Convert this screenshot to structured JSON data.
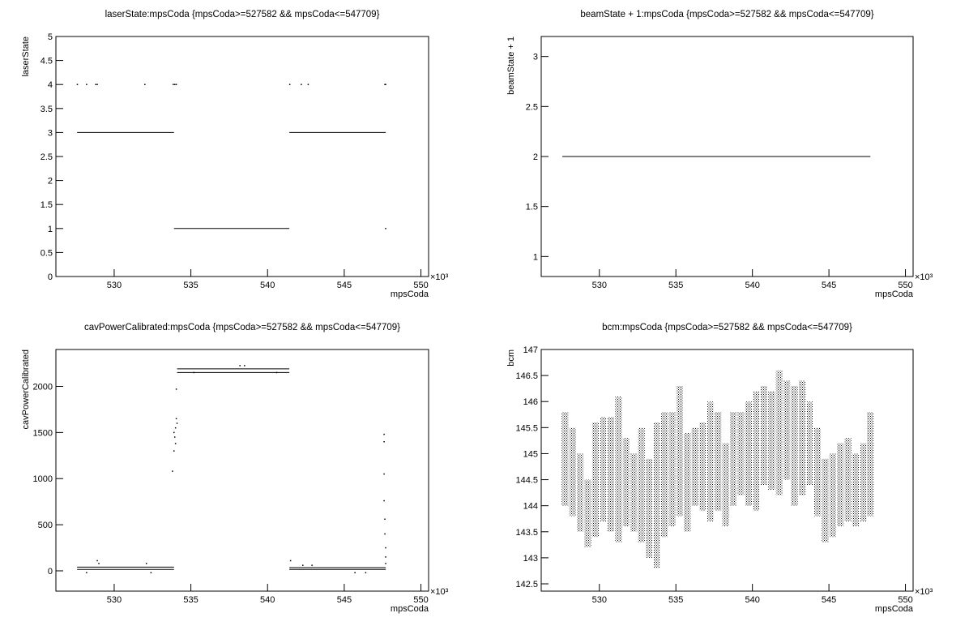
{
  "chart_data": [
    {
      "type": "scatter",
      "title": "laserState:mpsCoda {mpsCoda>=527582 && mpsCoda<=547709}",
      "xlabel": "mpsCoda",
      "ylabel": "laserState",
      "xscale_label": "×10³",
      "xlim": [
        526.2,
        550.5
      ],
      "xticks": [
        530,
        535,
        540,
        545,
        550
      ],
      "ylim": [
        0,
        5
      ],
      "yticks": [
        0,
        0.5,
        1,
        1.5,
        2,
        2.5,
        3,
        3.5,
        4,
        4.5,
        5
      ],
      "segments": {
        "x0": [
          527.58,
          533.9,
          541.42
        ],
        "x1": [
          533.9,
          541.42,
          547.71
        ],
        "y": [
          3,
          1,
          3
        ]
      },
      "points": {
        "x": [
          527.6,
          528.2,
          528.8,
          528.9,
          532.0,
          533.85,
          533.95,
          534.05,
          541.45,
          542.2,
          542.65,
          547.65,
          547.7,
          547.7
        ],
        "y": [
          4,
          4,
          4,
          4,
          4,
          4,
          4,
          4,
          4,
          4,
          4,
          4,
          4,
          1
        ]
      },
      "color": "#000000"
    },
    {
      "type": "scatter",
      "title": "beamState + 1:mpsCoda {mpsCoda>=527582 && mpsCoda<=547709}",
      "xlabel": "mpsCoda",
      "ylabel": "beamState + 1",
      "xscale_label": "×10³",
      "xlim": [
        526.2,
        550.5
      ],
      "xticks": [
        530,
        535,
        540,
        545,
        550
      ],
      "ylim": [
        0.8,
        3.2
      ],
      "yticks": [
        1,
        1.5,
        2,
        2.5,
        3
      ],
      "segments": {
        "x0": [
          527.58
        ],
        "x1": [
          547.71
        ],
        "y": [
          2
        ]
      },
      "color": "#000000"
    },
    {
      "type": "scatter",
      "title": "cavPowerCalibrated:mpsCoda {mpsCoda>=527582 && mpsCoda<=547709}",
      "xlabel": "mpsCoda",
      "ylabel": "cavPowerCalibrated",
      "xscale_label": "×10³",
      "xlim": [
        526.2,
        550.5
      ],
      "xticks": [
        530,
        535,
        540,
        545,
        550
      ],
      "ylim": [
        -220,
        2400
      ],
      "yticks": [
        0,
        500,
        1000,
        1500,
        2000
      ],
      "segments": {
        "x0": [
          527.58,
          527.58,
          534.1,
          534.1,
          541.42,
          541.42
        ],
        "x1": [
          533.9,
          533.9,
          541.42,
          541.42,
          547.71,
          547.71
        ],
        "y": [
          40,
          15,
          2190,
          2150,
          35,
          15
        ]
      },
      "points": {
        "x": [
          533.9,
          533.95,
          534.0,
          534.05,
          533.9,
          534.0,
          534.1,
          533.8,
          534.05,
          528.9,
          529.0,
          532.1,
          535.2,
          538.2,
          538.5,
          540.6,
          541.5,
          542.3,
          542.9,
          547.6,
          547.6,
          547.6,
          547.6,
          547.65,
          547.65,
          547.7,
          547.7,
          547.7,
          528.2,
          532.4,
          545.7,
          546.4
        ],
        "y": [
          1300,
          1450,
          1550,
          1650,
          1500,
          1380,
          1600,
          1080,
          1970,
          110,
          80,
          80,
          2150,
          2225,
          2225,
          2150,
          110,
          60,
          60,
          1480,
          1400,
          1050,
          760,
          560,
          400,
          250,
          150,
          80,
          -20,
          -20,
          -20,
          -20
        ]
      },
      "color": "#000000"
    },
    {
      "type": "range",
      "title": "bcm:mpsCoda {mpsCoda>=527582 && mpsCoda<=547709}",
      "xlabel": "mpsCoda",
      "ylabel": "bcm",
      "xscale_label": "×10³",
      "xlim": [
        526.2,
        550.5
      ],
      "xticks": [
        530,
        535,
        540,
        545,
        550
      ],
      "ylim": [
        142.36,
        147.0
      ],
      "yticks": [
        142.5,
        143,
        143.5,
        144,
        144.5,
        145,
        145.5,
        146,
        146.5,
        147
      ],
      "x": [
        527.75,
        528.25,
        528.75,
        529.25,
        529.75,
        530.25,
        530.75,
        531.25,
        531.75,
        532.25,
        532.75,
        533.25,
        533.75,
        534.25,
        534.75,
        535.25,
        535.75,
        536.25,
        536.75,
        537.25,
        537.75,
        538.25,
        538.75,
        539.25,
        539.75,
        540.25,
        540.75,
        541.25,
        541.75,
        542.25,
        542.75,
        543.25,
        543.75,
        544.25,
        544.75,
        545.25,
        545.75,
        546.25,
        546.75,
        547.25,
        547.7
      ],
      "low": [
        144.0,
        143.8,
        143.5,
        143.2,
        143.4,
        143.7,
        143.5,
        143.3,
        143.6,
        143.5,
        143.3,
        143.0,
        142.8,
        143.4,
        143.6,
        143.8,
        143.5,
        144.0,
        143.9,
        143.7,
        143.9,
        143.6,
        144.0,
        144.2,
        144.0,
        143.9,
        144.4,
        144.3,
        144.2,
        144.5,
        144.0,
        144.2,
        144.4,
        143.8,
        143.3,
        143.4,
        143.6,
        143.7,
        143.6,
        143.7,
        143.8
      ],
      "high": [
        145.8,
        145.5,
        145.0,
        144.5,
        145.6,
        145.7,
        145.7,
        146.1,
        145.3,
        145.0,
        145.5,
        144.9,
        145.6,
        145.8,
        145.8,
        146.3,
        145.4,
        145.5,
        145.6,
        146.0,
        145.8,
        145.2,
        145.8,
        145.8,
        146.0,
        146.2,
        146.3,
        146.2,
        146.6,
        146.4,
        146.3,
        146.4,
        146.0,
        145.5,
        144.9,
        145.0,
        145.2,
        145.3,
        145.0,
        145.2,
        145.8
      ],
      "color": "#000000"
    }
  ]
}
